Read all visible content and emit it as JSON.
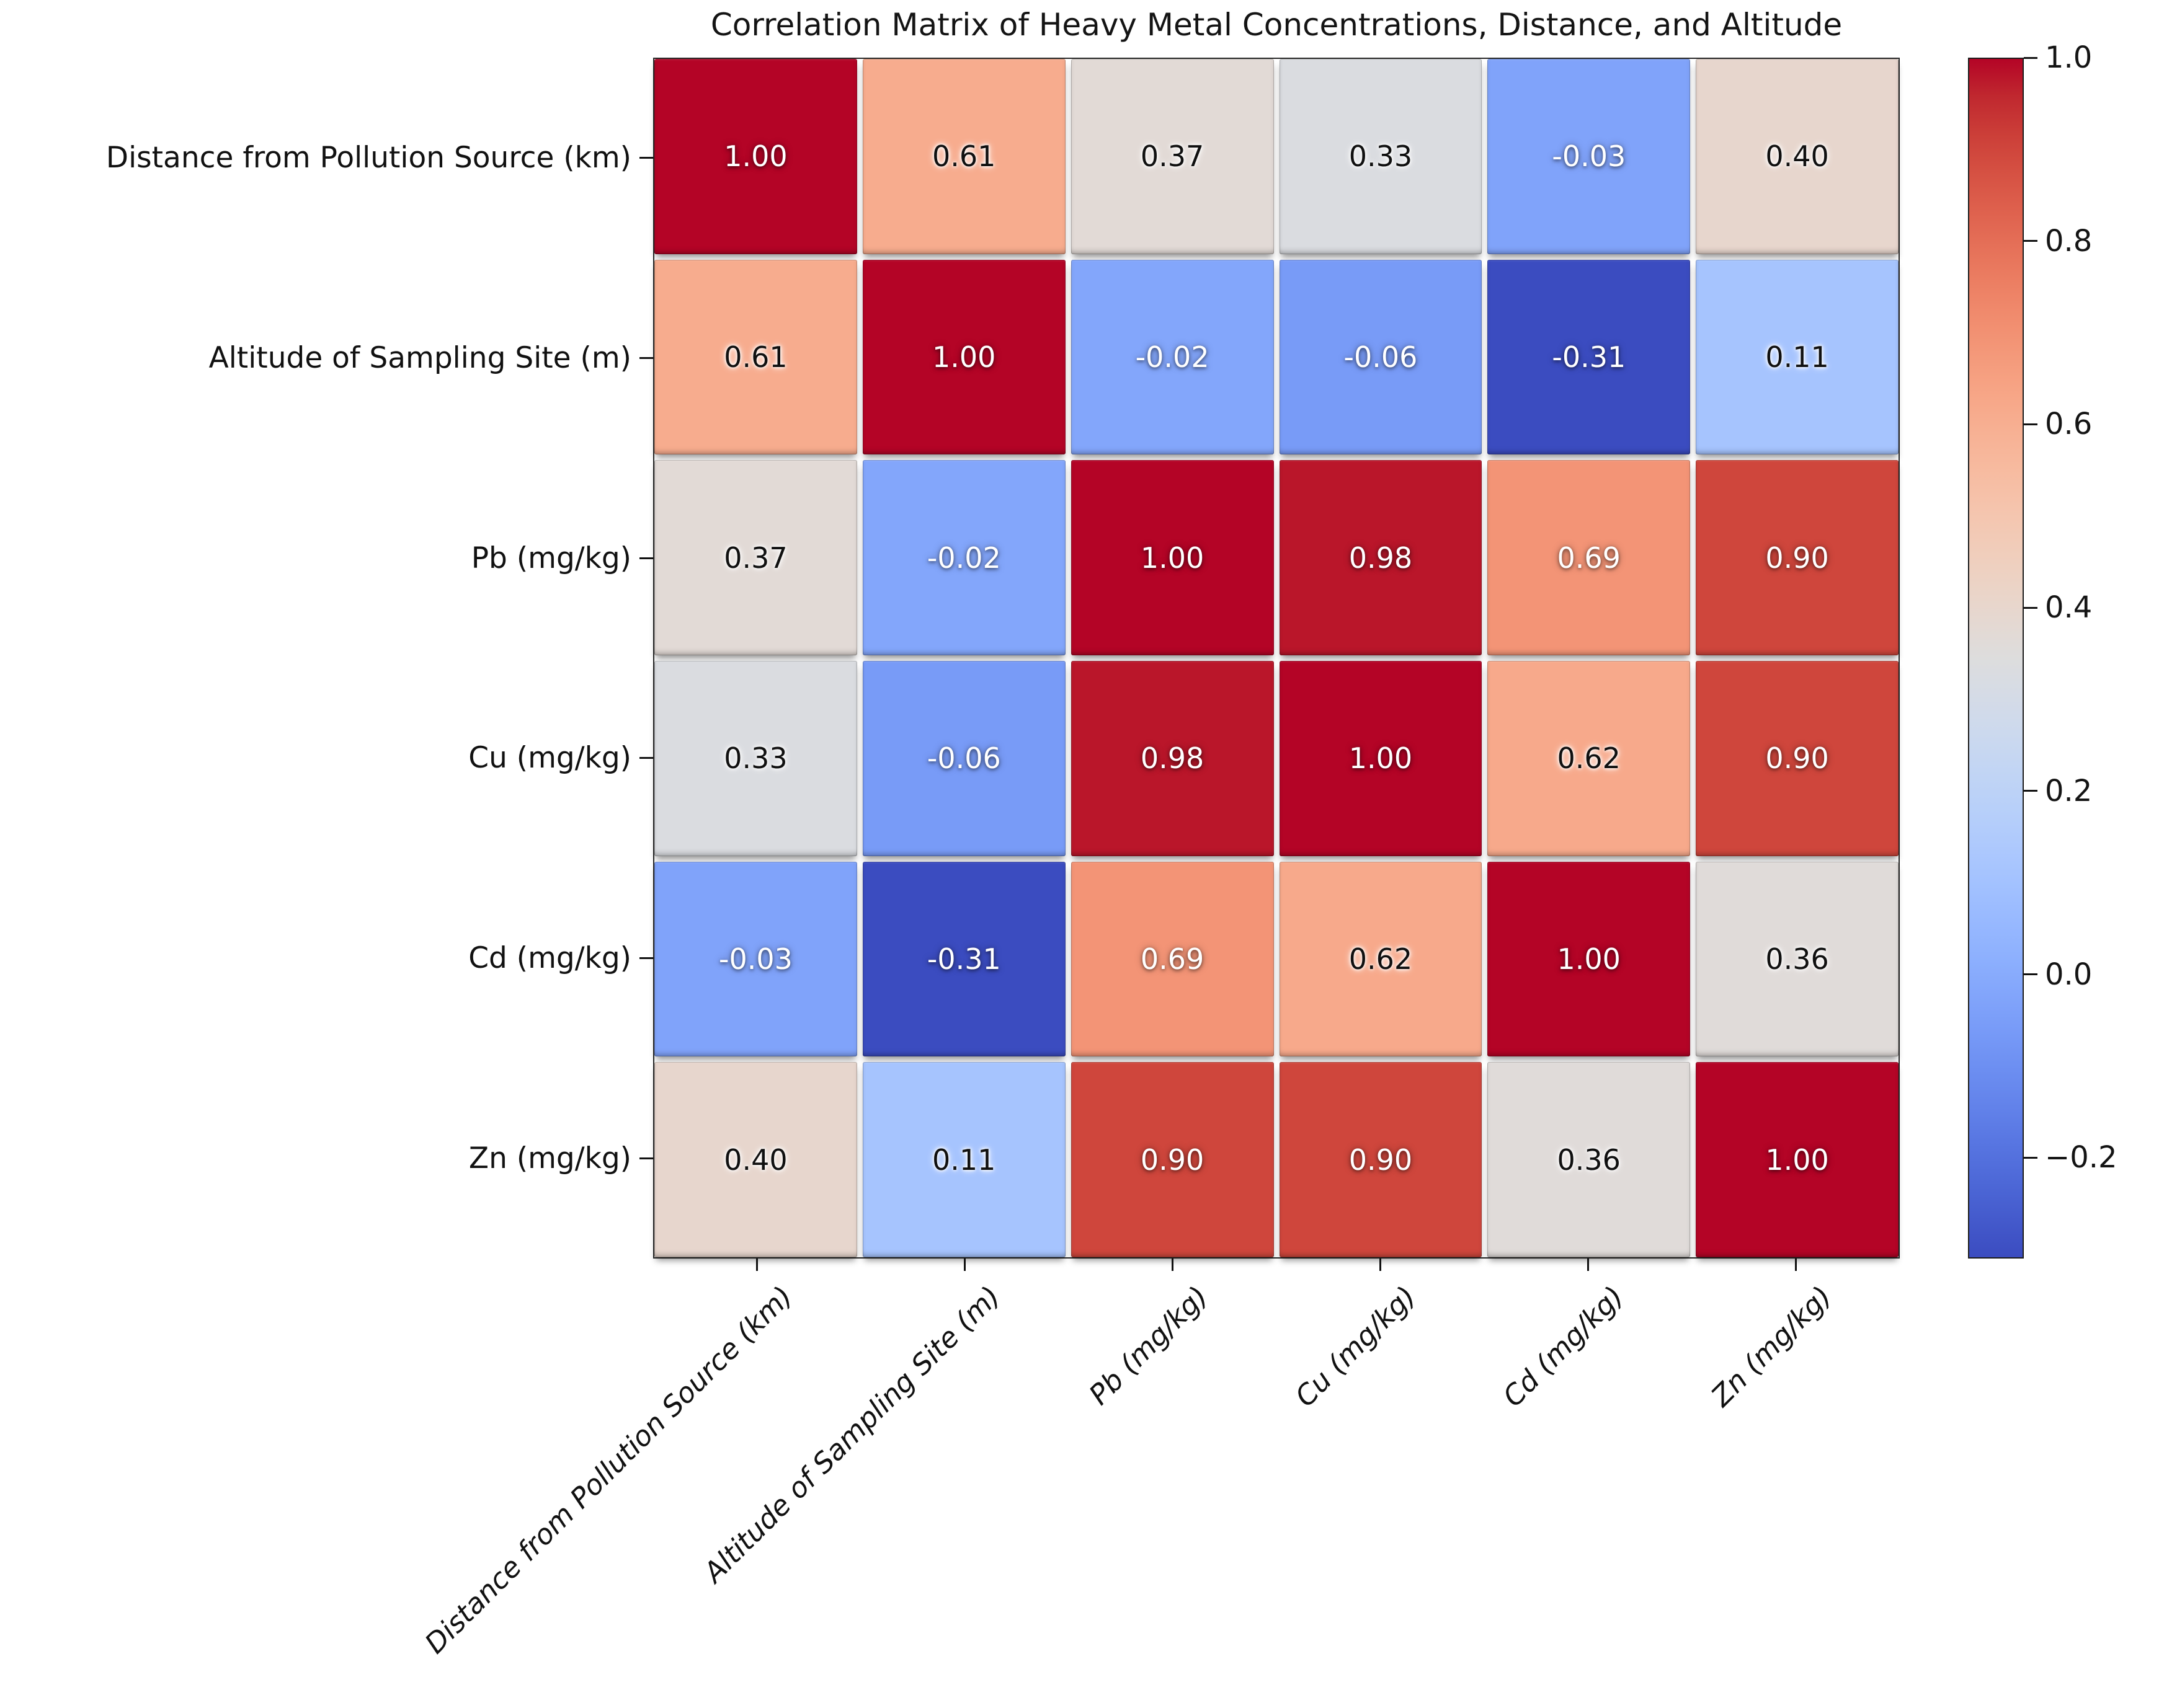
{
  "title": "Correlation Matrix of Heavy Metal Concentrations, Distance, and Altitude",
  "chart_data": {
    "type": "heatmap",
    "title": "Correlation Matrix of Heavy Metal Concentrations, Distance, and Altitude",
    "variables": [
      "Distance from Pollution Source (km)",
      "Altitude of Sampling Site (m)",
      "Pb (mg/kg)",
      "Cu (mg/kg)",
      "Cd (mg/kg)",
      "Zn (mg/kg)"
    ],
    "matrix": [
      [
        1.0,
        0.61,
        0.37,
        0.33,
        -0.03,
        0.4
      ],
      [
        0.61,
        1.0,
        -0.02,
        -0.06,
        -0.31,
        0.11
      ],
      [
        0.37,
        -0.02,
        1.0,
        0.98,
        0.69,
        0.9
      ],
      [
        0.33,
        -0.06,
        0.98,
        1.0,
        0.62,
        0.9
      ],
      [
        -0.03,
        -0.31,
        0.69,
        0.62,
        1.0,
        0.36
      ],
      [
        0.4,
        0.11,
        0.9,
        0.9,
        0.36,
        1.0
      ]
    ],
    "colormap": "coolwarm",
    "vmin": -0.31,
    "vmax": 1.0,
    "colorbar_ticks": [
      1.0,
      0.8,
      0.6,
      0.4,
      0.2,
      0.0,
      -0.2
    ],
    "colorbar_tick_labels": [
      "1.0",
      "0.8",
      "0.6",
      "0.4",
      "0.2",
      "0.0",
      "−0.2"
    ],
    "value_format_decimals": 2,
    "grid": false,
    "legend_position": "right-colorbar"
  },
  "colors": {
    "accent_high": "#b40426",
    "accent_low": "#3b4cc0",
    "neutral_mid": "#dddddd",
    "text": "#141414",
    "background": "#ffffff"
  }
}
